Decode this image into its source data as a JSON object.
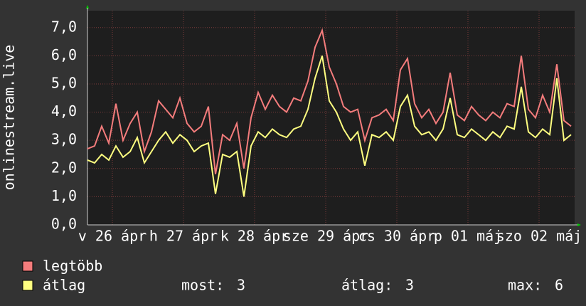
{
  "chart_data": {
    "type": "line",
    "y_label": "onlinestream.live",
    "x": [
      0.0,
      0.1,
      0.2,
      0.3,
      0.4,
      0.5,
      0.6,
      0.7,
      0.8,
      0.9,
      1.0,
      1.1,
      1.2,
      1.3,
      1.4,
      1.5,
      1.6,
      1.7,
      1.8,
      1.9,
      2.0,
      2.1,
      2.2,
      2.3,
      2.4,
      2.5,
      2.6,
      2.7,
      2.8,
      2.9,
      3.0,
      3.1,
      3.2,
      3.3,
      3.4,
      3.5,
      3.6,
      3.7,
      3.8,
      3.9,
      4.0,
      4.1,
      4.2,
      4.3,
      4.4,
      4.5,
      4.6,
      4.7,
      4.8,
      4.9,
      5.0,
      5.1,
      5.2,
      5.3,
      5.4,
      5.5,
      5.6,
      5.7,
      5.8,
      5.9,
      6.0,
      6.1,
      6.2,
      6.3,
      6.4,
      6.5,
      6.6,
      6.7,
      6.8
    ],
    "series": [
      {
        "name": "legtöbb",
        "color": "#f47c7c",
        "values": [
          2.7,
          2.8,
          3.5,
          2.9,
          4.3,
          3.0,
          3.6,
          4.0,
          2.6,
          3.3,
          4.4,
          4.1,
          3.8,
          4.5,
          3.6,
          3.3,
          3.5,
          4.2,
          1.8,
          3.2,
          3.0,
          3.6,
          2.0,
          3.8,
          4.7,
          4.1,
          4.6,
          4.2,
          4.0,
          4.5,
          4.4,
          5.1,
          6.3,
          6.9,
          5.6,
          5.0,
          4.2,
          4.0,
          4.1,
          3.0,
          3.8,
          3.9,
          4.1,
          3.7,
          5.5,
          5.9,
          4.3,
          3.8,
          4.1,
          3.6,
          4.0,
          5.4,
          3.9,
          3.7,
          4.2,
          3.9,
          3.7,
          4.0,
          3.8,
          4.3,
          4.2,
          6.0,
          4.1,
          3.8,
          4.6,
          4.0,
          5.7,
          3.7,
          3.5
        ]
      },
      {
        "name": "átlag",
        "color": "#ffff80",
        "values": [
          2.3,
          2.2,
          2.5,
          2.3,
          2.8,
          2.4,
          2.6,
          3.1,
          2.2,
          2.6,
          3.0,
          3.3,
          2.9,
          3.2,
          3.0,
          2.6,
          2.8,
          2.9,
          1.1,
          2.5,
          2.4,
          2.6,
          1.0,
          2.8,
          3.3,
          3.1,
          3.4,
          3.2,
          3.1,
          3.4,
          3.5,
          4.1,
          5.2,
          6.0,
          4.4,
          4.0,
          3.4,
          3.0,
          3.3,
          2.1,
          3.2,
          3.1,
          3.3,
          3.0,
          4.2,
          4.6,
          3.5,
          3.2,
          3.3,
          3.0,
          3.4,
          4.5,
          3.2,
          3.1,
          3.4,
          3.2,
          3.0,
          3.3,
          3.1,
          3.5,
          3.4,
          4.9,
          3.3,
          3.1,
          3.4,
          3.2,
          5.2,
          3.0,
          3.2
        ]
      }
    ],
    "xlim": [
      0,
      6.85
    ],
    "xticks": [
      {
        "value": 0.35,
        "label": "v 26 ápr"
      },
      {
        "value": 1.35,
        "label": "h 27 ápr"
      },
      {
        "value": 2.35,
        "label": "k 28 ápr"
      },
      {
        "value": 3.35,
        "label": "sze 29 ápr"
      },
      {
        "value": 4.35,
        "label": "cs 30 ápr"
      },
      {
        "value": 5.35,
        "label": "p 01 máj"
      },
      {
        "value": 6.35,
        "label": "szo 02 máj"
      }
    ],
    "ylim": [
      0,
      7.6
    ],
    "yticks": [
      {
        "value": 0,
        "label": "0,0"
      },
      {
        "value": 1,
        "label": "1,0"
      },
      {
        "value": 2,
        "label": "2,0"
      },
      {
        "value": 3,
        "label": "3,0"
      },
      {
        "value": 4,
        "label": "4,0"
      },
      {
        "value": 5,
        "label": "5,0"
      },
      {
        "value": 6,
        "label": "6,0"
      },
      {
        "value": 7,
        "label": "7,0"
      }
    ],
    "grid": true,
    "legend_stats": [
      {
        "label": "most:",
        "value": 3
      },
      {
        "label": "átlag:",
        "value": 3
      },
      {
        "label": "max:",
        "value": 6
      }
    ]
  }
}
